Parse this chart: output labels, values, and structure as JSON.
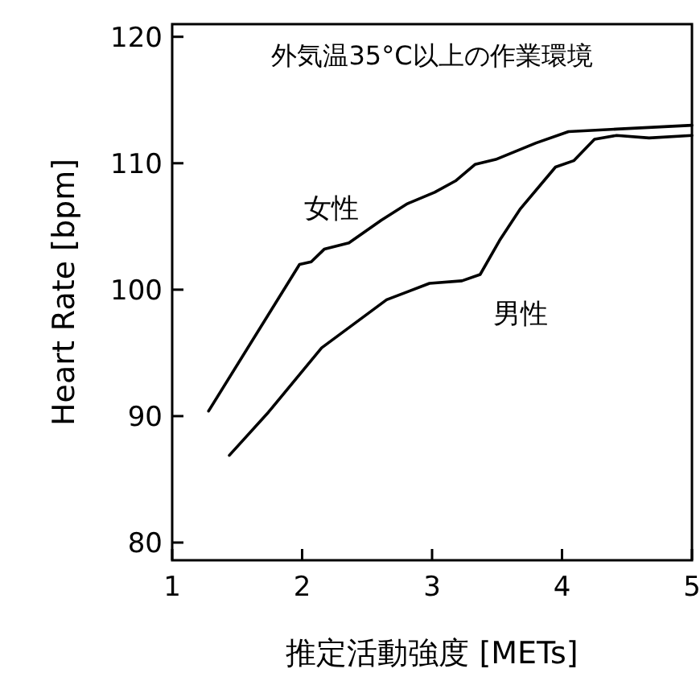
{
  "chart_data": {
    "type": "line",
    "title": "外気温35°C以上の作業環境",
    "xlabel": "推定活動強度 [METs]",
    "ylabel": "Heart Rate [bpm]",
    "xlim": [
      1,
      5
    ],
    "ylim": [
      78.6,
      121
    ],
    "xticks": [
      1,
      2,
      3,
      4,
      5
    ],
    "yticks": [
      80,
      90,
      100,
      110,
      120
    ],
    "grid": false,
    "legend": false,
    "marker": "none",
    "line_style": "solid",
    "series": [
      {
        "name": "女性",
        "color": "#000000",
        "x": [
          1.28,
          1.98,
          2.07,
          2.17,
          2.36,
          2.61,
          2.81,
          3.02,
          3.18,
          3.33,
          3.49,
          3.8,
          4.05,
          4.42,
          5.0
        ],
        "values": [
          90.4,
          102.0,
          102.2,
          103.2,
          103.7,
          105.5,
          106.8,
          107.7,
          108.6,
          109.9,
          110.3,
          111.6,
          112.5,
          112.7,
          113.0
        ]
      },
      {
        "name": "男性",
        "color": "#000000",
        "x": [
          1.44,
          1.74,
          2.15,
          2.65,
          2.98,
          3.23,
          3.37,
          3.52,
          3.68,
          3.95,
          4.09,
          4.25,
          4.42,
          4.67,
          5.0
        ],
        "values": [
          86.9,
          90.3,
          95.4,
          99.2,
          100.5,
          100.7,
          101.2,
          103.9,
          106.4,
          109.7,
          110.2,
          111.9,
          112.2,
          112.0,
          112.2
        ]
      }
    ]
  }
}
